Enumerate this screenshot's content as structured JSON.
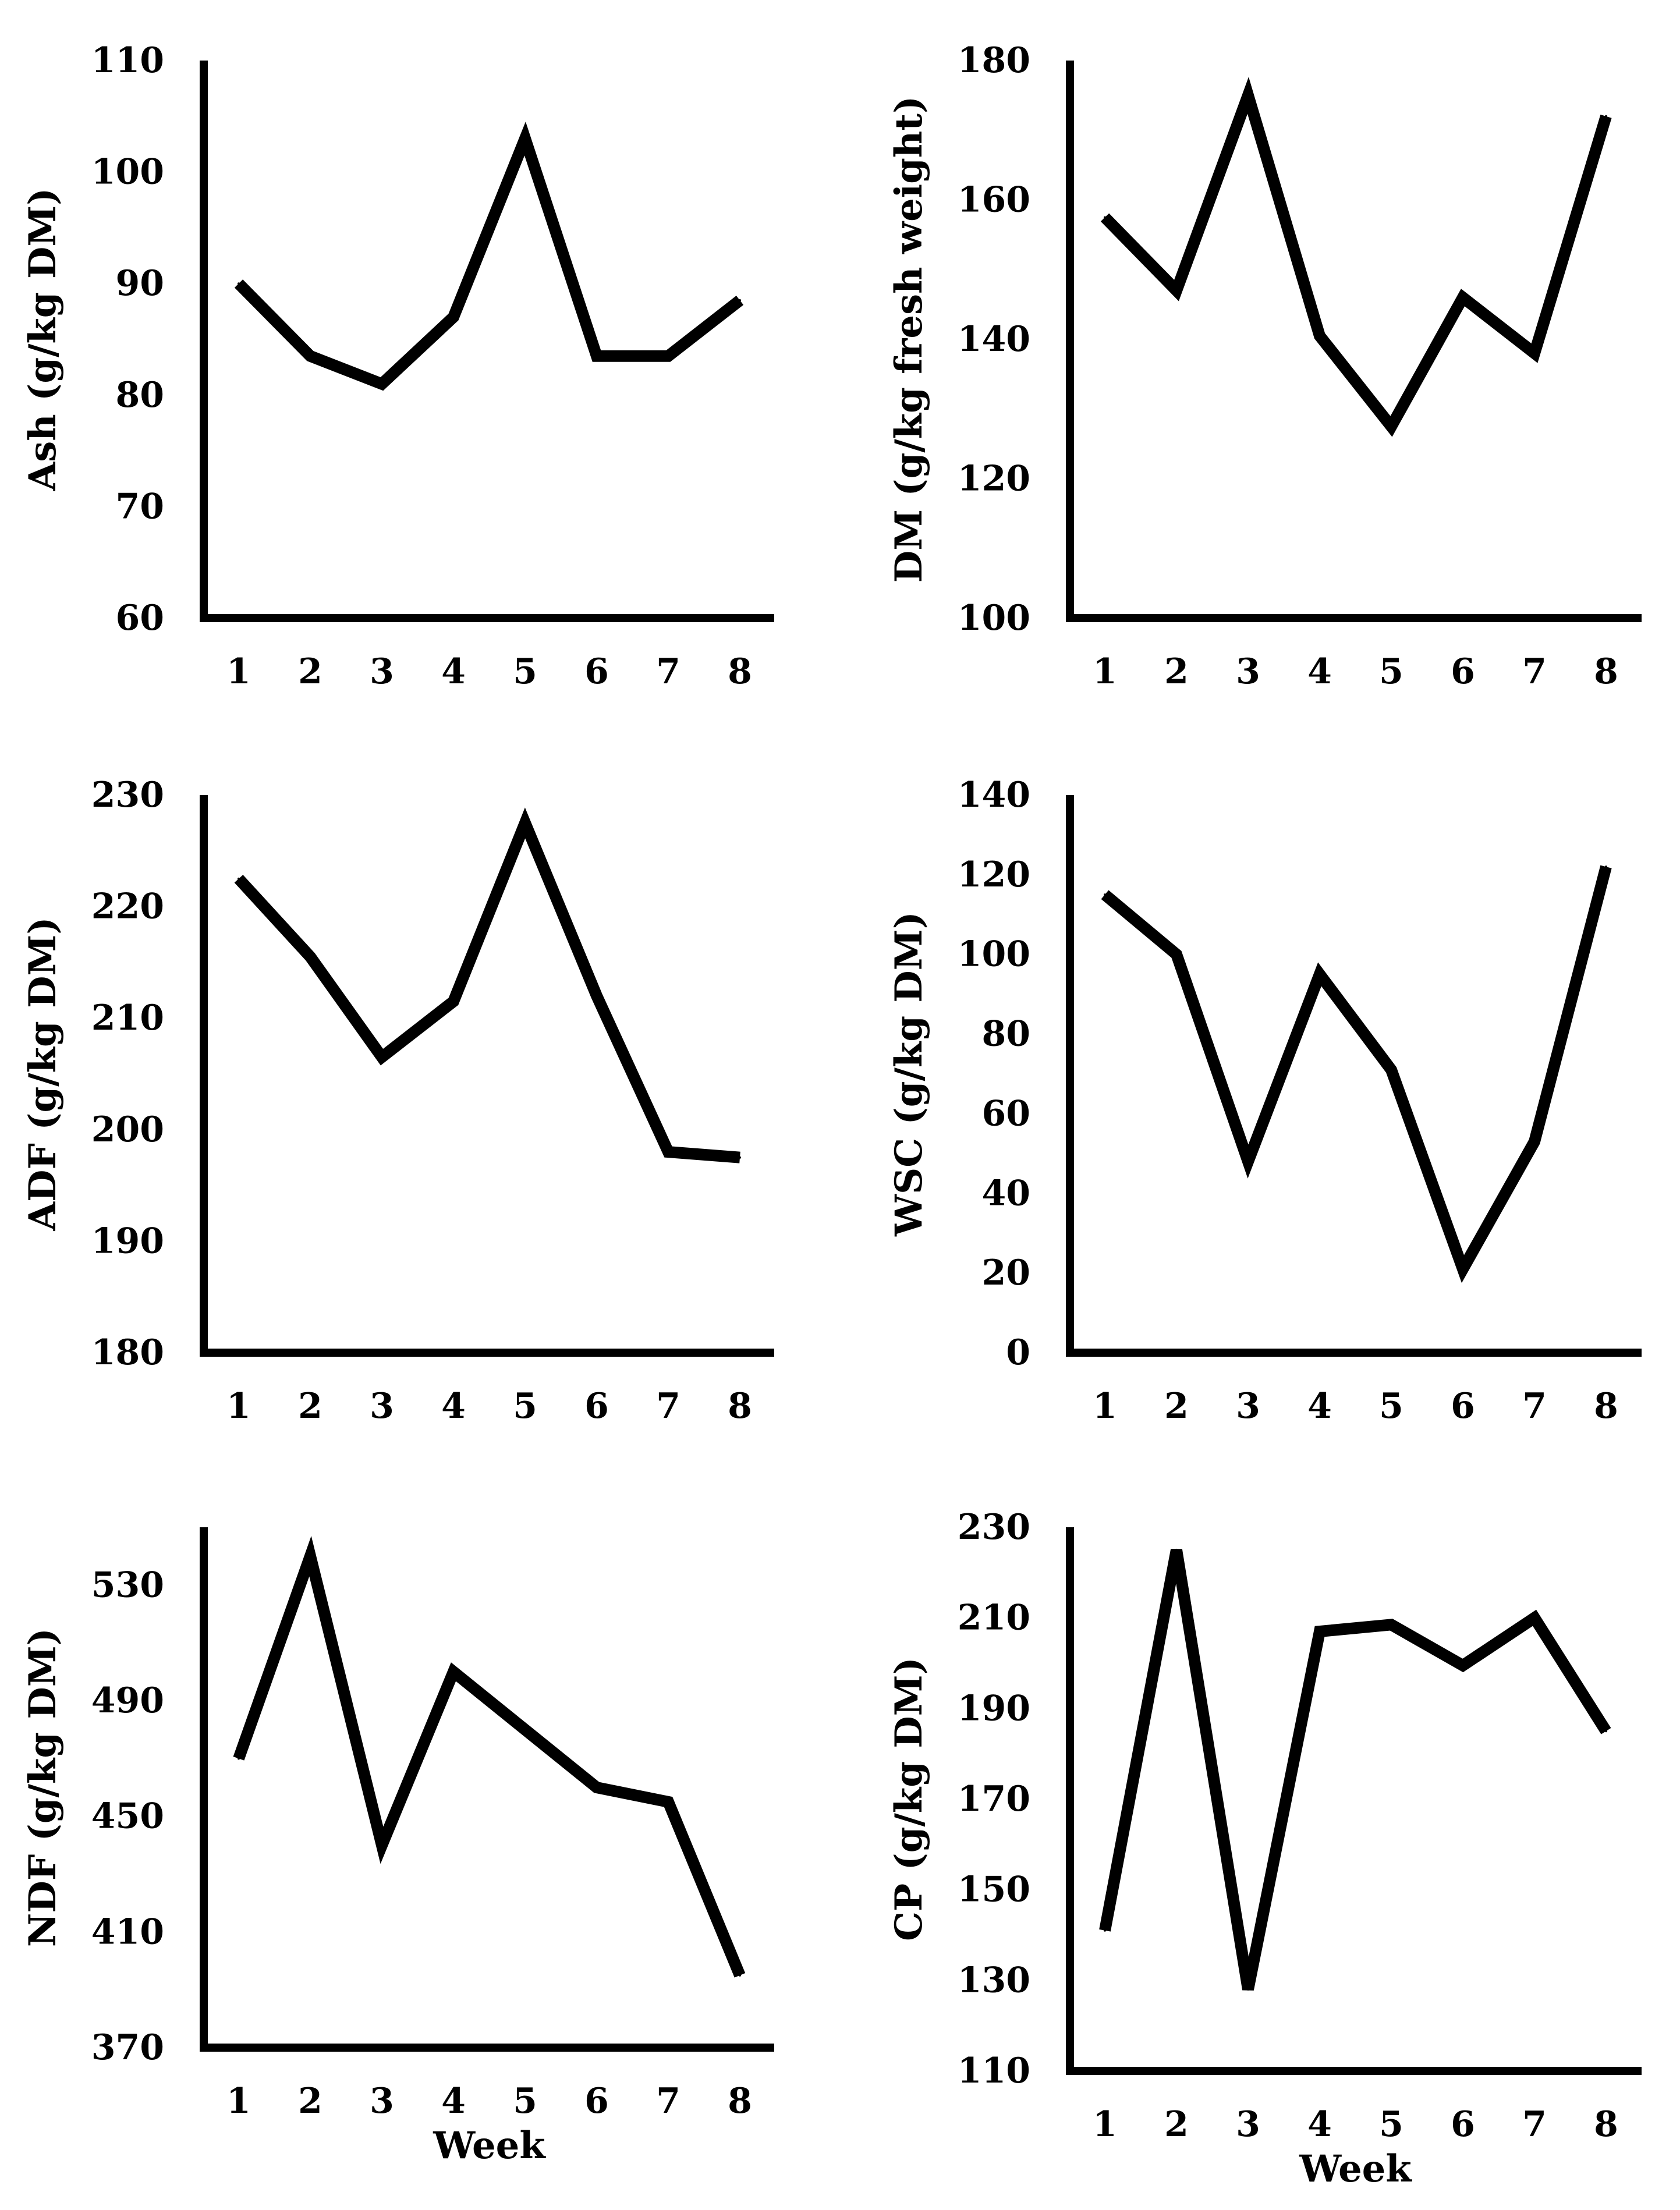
{
  "chart_data": [
    {
      "type": "line",
      "title": "",
      "xlabel": "",
      "ylabel": "Ash (g/kg DM)",
      "categories": [
        "1",
        "2",
        "3",
        "4",
        "5",
        "6",
        "7",
        "8"
      ],
      "ylim": [
        60,
        110
      ],
      "yticks": [
        "60",
        "70",
        "80",
        "90",
        "100",
        "110"
      ],
      "series": [
        {
          "name": "Ash",
          "values": [
            90,
            83.5,
            81,
            87,
            103,
            83.5,
            83.5,
            88.5
          ]
        }
      ],
      "color": "#000000"
    },
    {
      "type": "line",
      "title": "",
      "xlabel": "",
      "ylabel": "DM (g/kg fresh weight)",
      "categories": [
        "1",
        "2",
        "3",
        "4",
        "5",
        "6",
        "7",
        "8"
      ],
      "ylim": [
        100,
        180
      ],
      "yticks": [
        "100",
        "120",
        "140",
        "160",
        "180"
      ],
      "series": [
        {
          "name": "DM",
          "values": [
            157.5,
            147,
            175,
            140.5,
            127.5,
            146,
            138,
            172
          ]
        }
      ],
      "color": "#000000"
    },
    {
      "type": "line",
      "title": "",
      "xlabel": "",
      "ylabel": "ADF (g/kg DM)",
      "categories": [
        "1",
        "2",
        "3",
        "4",
        "5",
        "6",
        "7",
        "8"
      ],
      "ylim": [
        180,
        230
      ],
      "yticks": [
        "180",
        "190",
        "200",
        "210",
        "220",
        "230"
      ],
      "series": [
        {
          "name": "ADF",
          "values": [
            222.5,
            215.5,
            206.5,
            211.5,
            227.5,
            212,
            198,
            197.5
          ]
        }
      ],
      "color": "#000000"
    },
    {
      "type": "line",
      "title": "",
      "xlabel": "",
      "ylabel": "WSC (g/kg DM)",
      "categories": [
        "1",
        "2",
        "3",
        "4",
        "5",
        "6",
        "7",
        "8"
      ],
      "ylim": [
        0,
        140
      ],
      "yticks": [
        "0",
        "20",
        "40",
        "60",
        "80",
        "100",
        "120",
        "140"
      ],
      "series": [
        {
          "name": "WSC",
          "values": [
            115,
            100,
            48,
            95,
            71,
            21,
            53,
            122
          ]
        }
      ],
      "color": "#000000"
    },
    {
      "type": "line",
      "title": "",
      "xlabel": "Week",
      "ylabel": "NDF (g/kg DM)",
      "categories": [
        "1",
        "2",
        "3",
        "4",
        "5",
        "6",
        "7",
        "8"
      ],
      "ylim": [
        370,
        550
      ],
      "yticks": [
        "370",
        "410",
        "450",
        "490",
        "530"
      ],
      "series": [
        {
          "name": "NDF",
          "values": [
            470,
            540,
            440,
            500,
            480,
            460,
            455,
            395
          ]
        }
      ],
      "color": "#000000"
    },
    {
      "type": "line",
      "title": "",
      "xlabel": "Week",
      "ylabel": "CP (g/kg DM)",
      "categories": [
        "1",
        "2",
        "3",
        "4",
        "5",
        "6",
        "7",
        "8"
      ],
      "ylim": [
        110,
        230
      ],
      "yticks": [
        "110",
        "130",
        "150",
        "170",
        "190",
        "210",
        "230"
      ],
      "series": [
        {
          "name": "CP",
          "values": [
            141,
            225,
            128,
            207,
            208.5,
            199.5,
            210,
            185
          ]
        }
      ],
      "color": "#000000"
    }
  ]
}
